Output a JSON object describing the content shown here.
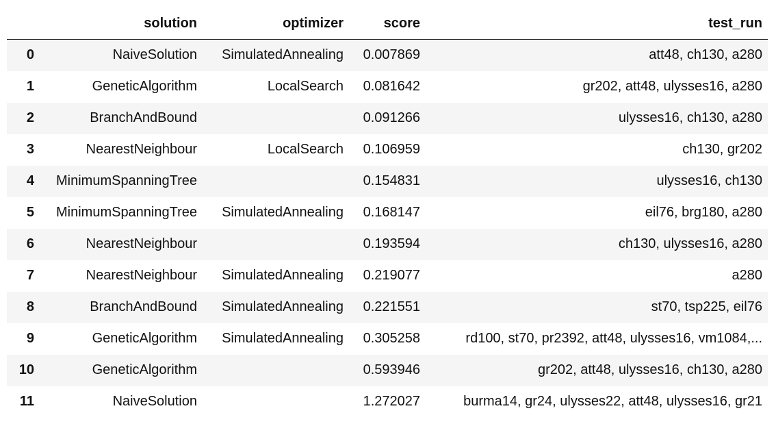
{
  "columns": {
    "solution": "solution",
    "optimizer": "optimizer",
    "score": "score",
    "test_run": "test_run"
  },
  "rows": [
    {
      "index": "0",
      "solution": "NaiveSolution",
      "optimizer": "SimulatedAnnealing",
      "score": "0.007869",
      "test_run": "att48, ch130, a280"
    },
    {
      "index": "1",
      "solution": "GeneticAlgorithm",
      "optimizer": "LocalSearch",
      "score": "0.081642",
      "test_run": "gr202, att48, ulysses16, a280"
    },
    {
      "index": "2",
      "solution": "BranchAndBound",
      "optimizer": "",
      "score": "0.091266",
      "test_run": "ulysses16, ch130, a280"
    },
    {
      "index": "3",
      "solution": "NearestNeighbour",
      "optimizer": "LocalSearch",
      "score": "0.106959",
      "test_run": "ch130, gr202"
    },
    {
      "index": "4",
      "solution": "MinimumSpanningTree",
      "optimizer": "",
      "score": "0.154831",
      "test_run": "ulysses16, ch130"
    },
    {
      "index": "5",
      "solution": "MinimumSpanningTree",
      "optimizer": "SimulatedAnnealing",
      "score": "0.168147",
      "test_run": "eil76, brg180, a280"
    },
    {
      "index": "6",
      "solution": "NearestNeighbour",
      "optimizer": "",
      "score": "0.193594",
      "test_run": "ch130, ulysses16, a280"
    },
    {
      "index": "7",
      "solution": "NearestNeighbour",
      "optimizer": "SimulatedAnnealing",
      "score": "0.219077",
      "test_run": "a280"
    },
    {
      "index": "8",
      "solution": "BranchAndBound",
      "optimizer": "SimulatedAnnealing",
      "score": "0.221551",
      "test_run": "st70, tsp225, eil76"
    },
    {
      "index": "9",
      "solution": "GeneticAlgorithm",
      "optimizer": "SimulatedAnnealing",
      "score": "0.305258",
      "test_run": "rd100, st70, pr2392, att48, ulysses16, vm1084,..."
    },
    {
      "index": "10",
      "solution": "GeneticAlgorithm",
      "optimizer": "",
      "score": "0.593946",
      "test_run": "gr202, att48, ulysses16, ch130, a280"
    },
    {
      "index": "11",
      "solution": "NaiveSolution",
      "optimizer": "",
      "score": "1.272027",
      "test_run": "burma14, gr24, ulysses22, att48, ulysses16, gr21"
    }
  ]
}
